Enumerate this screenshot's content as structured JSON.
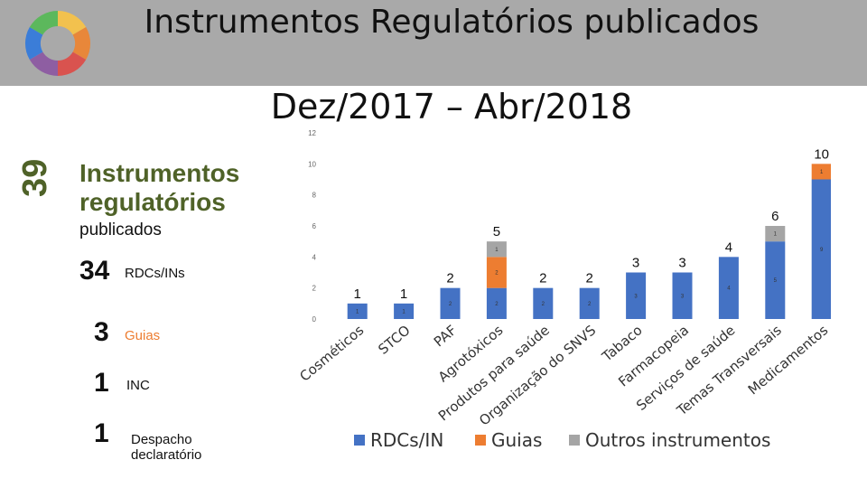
{
  "header": {
    "title": "Instrumentos Regulatórios publicados",
    "subtitle": "Dez/2017 – Abr/2018"
  },
  "summary": {
    "total": "39",
    "heading": "Instrumentos regulatórios",
    "subheading": "publicados",
    "counts": [
      {
        "value": "34",
        "label": "RDCs/INs"
      },
      {
        "value": "3",
        "label": "Guias"
      },
      {
        "value": "1",
        "label": "INC"
      },
      {
        "value": "1",
        "label": "Despacho declaratório"
      }
    ]
  },
  "colors": {
    "header_bg": "#a9a9a9",
    "rdc": "#4472c4",
    "guia": "#ed7d31",
    "outros": "#a5a5a5",
    "accent_green": "#4f6228"
  },
  "chart_data": {
    "type": "bar",
    "stacked": true,
    "categories": [
      "Cosméticos",
      "STCO",
      "PAF",
      "Agrotóxicos",
      "Produtos para saúde",
      "Organização do SNVS",
      "Tabaco",
      "Farmacopeia",
      "Serviços de saúde",
      "Temas Transversais",
      "Medicamentos"
    ],
    "series": [
      {
        "name": "RDCs/IN",
        "values": [
          1,
          1,
          2,
          2,
          2,
          2,
          3,
          3,
          4,
          5,
          9
        ]
      },
      {
        "name": "Guias",
        "values": [
          0,
          0,
          0,
          2,
          0,
          0,
          0,
          0,
          0,
          0,
          1
        ]
      },
      {
        "name": "Outros instrumentos",
        "values": [
          0,
          0,
          0,
          1,
          0,
          0,
          0,
          0,
          0,
          1,
          0
        ]
      }
    ],
    "totals": [
      1,
      1,
      2,
      5,
      2,
      2,
      3,
      3,
      4,
      6,
      10
    ],
    "ylim": [
      0,
      12
    ],
    "yticks": [
      0,
      2,
      4,
      6,
      8,
      10,
      12
    ],
    "grid": false,
    "legend": "bottom"
  }
}
